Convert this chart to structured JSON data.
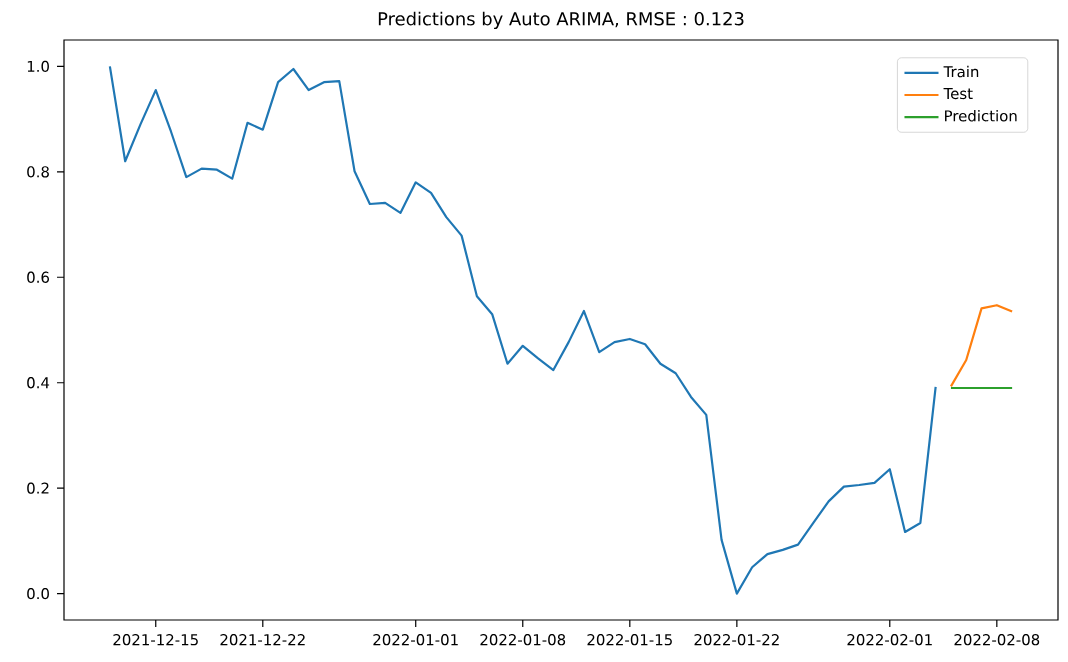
{
  "chart_data": {
    "type": "line",
    "title": "Predictions by Auto ARIMA, RMSE : 0.123",
    "series": [
      {
        "name": "Train",
        "color": "#1f77b4",
        "x": [
          "2021-12-12",
          "2021-12-13",
          "2021-12-14",
          "2021-12-15",
          "2021-12-16",
          "2021-12-17",
          "2021-12-18",
          "2021-12-19",
          "2021-12-20",
          "2021-12-21",
          "2021-12-22",
          "2021-12-23",
          "2021-12-24",
          "2021-12-25",
          "2021-12-26",
          "2021-12-27",
          "2021-12-28",
          "2021-12-29",
          "2021-12-30",
          "2021-12-31",
          "2022-01-01",
          "2022-01-02",
          "2022-01-03",
          "2022-01-04",
          "2022-01-05",
          "2022-01-06",
          "2022-01-07",
          "2022-01-08",
          "2022-01-09",
          "2022-01-10",
          "2022-01-11",
          "2022-01-12",
          "2022-01-13",
          "2022-01-14",
          "2022-01-15",
          "2022-01-16",
          "2022-01-17",
          "2022-01-18",
          "2022-01-19",
          "2022-01-20",
          "2022-01-21",
          "2022-01-22",
          "2022-01-23",
          "2022-01-24",
          "2022-01-25",
          "2022-01-26",
          "2022-01-27",
          "2022-01-28",
          "2022-01-29",
          "2022-01-30",
          "2022-01-31",
          "2022-02-01",
          "2022-02-02",
          "2022-02-03",
          "2022-02-04"
        ],
        "values": [
          1.0,
          0.82,
          0.89,
          0.955,
          0.876,
          0.79,
          0.806,
          0.804,
          0.787,
          0.893,
          0.88,
          0.97,
          0.995,
          0.955,
          0.97,
          0.972,
          0.801,
          0.739,
          0.741,
          0.722,
          0.78,
          0.76,
          0.714,
          0.679,
          0.564,
          0.53,
          0.436,
          0.47,
          0.446,
          0.424,
          0.477,
          0.536,
          0.458,
          0.477,
          0.483,
          0.473,
          0.436,
          0.418,
          0.373,
          0.339,
          0.102,
          0.0,
          0.05,
          0.075,
          0.083,
          0.093,
          0.134,
          0.175,
          0.203,
          0.206,
          0.21,
          0.236,
          0.117,
          0.134,
          0.392
        ]
      },
      {
        "name": "Test",
        "color": "#ff7f0e",
        "x": [
          "2022-02-05",
          "2022-02-06",
          "2022-02-07",
          "2022-02-08",
          "2022-02-09"
        ],
        "values": [
          0.393,
          0.443,
          0.541,
          0.547,
          0.535
        ]
      },
      {
        "name": "Prediction",
        "color": "#2ca02c",
        "x": [
          "2022-02-05",
          "2022-02-06",
          "2022-02-07",
          "2022-02-08",
          "2022-02-09"
        ],
        "values": [
          0.39,
          0.39,
          0.39,
          0.39,
          0.39
        ]
      }
    ],
    "xlim": [
      "2021-12-09",
      "2022-02-12"
    ],
    "xticks": [
      "2021-12-15",
      "2021-12-22",
      "2022-01-01",
      "2022-01-08",
      "2022-01-15",
      "2022-01-22",
      "2022-02-01",
      "2022-02-08"
    ],
    "ylim": [
      -0.05,
      1.05
    ],
    "yticks": [
      {
        "value": 0,
        "label": "0.0"
      },
      {
        "value": 0.2,
        "label": "0.2"
      },
      {
        "value": 0.4,
        "label": "0.4"
      },
      {
        "value": 0.6,
        "label": "0.6"
      },
      {
        "value": 0.8,
        "label": "0.8"
      },
      {
        "value": 1,
        "label": "1.0"
      }
    ],
    "legend": "top right",
    "grid": false,
    "marker": "none",
    "line_style": "solid"
  }
}
